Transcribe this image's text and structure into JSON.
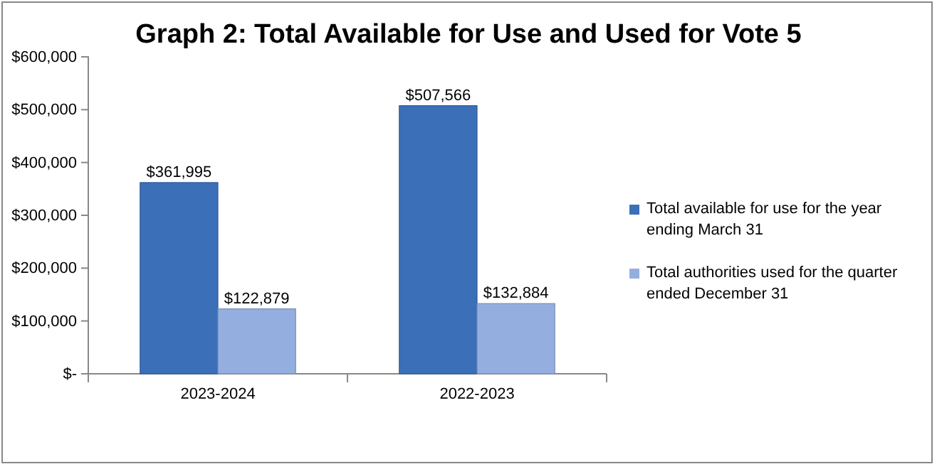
{
  "chart_data": {
    "type": "bar",
    "title": "Graph 2: Total Available for Use and Used for Vote 5",
    "categories": [
      "2023-2024",
      "2022-2023"
    ],
    "series": [
      {
        "name": "Total available for use for the year ending March 31",
        "color": "#3b6fb8",
        "values": [
          361995,
          507566
        ],
        "value_labels": [
          "$361,995",
          "$507,566"
        ]
      },
      {
        "name": "Total authorities used for the quarter ended December 31",
        "color": "#95aee0",
        "values": [
          122879,
          132884
        ],
        "value_labels": [
          "$122,879",
          "$132,884"
        ]
      }
    ],
    "ylim": [
      0,
      600000
    ],
    "yticks": [
      {
        "value": 0,
        "label": "$-"
      },
      {
        "value": 100000,
        "label": "$100,000"
      },
      {
        "value": 200000,
        "label": "$200,000"
      },
      {
        "value": 300000,
        "label": "$300,000"
      },
      {
        "value": 400000,
        "label": "$400,000"
      },
      {
        "value": 500000,
        "label": "$500,000"
      },
      {
        "value": 600000,
        "label": "$600,000"
      }
    ],
    "legend": "right",
    "grid": false
  }
}
